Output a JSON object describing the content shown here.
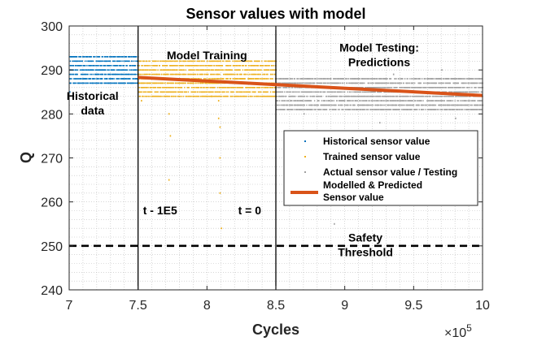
{
  "chart_data": {
    "type": "scatter",
    "title": "Sensor values with model",
    "xlabel": "Cycles",
    "ylabel": "Q",
    "xlim": [
      700000,
      1000000
    ],
    "ylim": [
      240,
      300
    ],
    "x_tick_labels": [
      "7",
      "7.5",
      "8",
      "8.5",
      "9",
      "9.5",
      "10"
    ],
    "x_tick_values": [
      700000,
      750000,
      800000,
      850000,
      900000,
      950000,
      1000000
    ],
    "x_exponent_label": "×10",
    "x_exponent_power": "5",
    "y_ticks": [
      240,
      250,
      260,
      270,
      280,
      290,
      300
    ],
    "grid": "minor dotted",
    "legend_position": "right",
    "series": [
      {
        "name": "Historical sensor value",
        "kind": "points",
        "color": "#0072BD",
        "x_range": [
          700000,
          750000
        ],
        "y_levels": [
          287,
          288,
          289,
          290,
          291,
          292,
          293
        ],
        "outliers": [
          [
            700000,
            285
          ]
        ]
      },
      {
        "name": "Trained sensor value",
        "kind": "points",
        "color": "#EDB120",
        "x_range": [
          750000,
          850000
        ],
        "y_levels": [
          284,
          285,
          286,
          287,
          288,
          289,
          290,
          291,
          292
        ],
        "outliers": [
          [
            772000,
            280
          ],
          [
            773000,
            275
          ],
          [
            772000,
            265
          ],
          [
            803000,
            284
          ],
          [
            808000,
            283
          ],
          [
            808000,
            279
          ],
          [
            809000,
            277
          ],
          [
            809000,
            270
          ],
          [
            809000,
            262
          ],
          [
            810000,
            254
          ],
          [
            752000,
            283
          ]
        ]
      },
      {
        "name": "Actual sensor value / Testing",
        "kind": "points",
        "color": "#A0A0A0",
        "x_range": [
          850000,
          1000000
        ],
        "y_levels": [
          281,
          282,
          283,
          284,
          285,
          286,
          287,
          288
        ],
        "outliers": [
          [
            892000,
            255
          ],
          [
            895000,
            270
          ],
          [
            915000,
            275
          ],
          [
            945000,
            265
          ],
          [
            960000,
            270
          ],
          [
            925000,
            278
          ],
          [
            980000,
            279
          ],
          [
            870000,
            280
          ],
          [
            970000,
            290
          ],
          [
            935000,
            289
          ]
        ]
      },
      {
        "name": "Modelled & Predicted Sensor value",
        "legend_lines": [
          "Modelled & Predicted",
          "Sensor value"
        ],
        "kind": "line",
        "color": "#D95319",
        "x": [
          750000,
          1000000
        ],
        "y": [
          288.3,
          284.2
        ]
      }
    ],
    "reference_lines": [
      {
        "orientation": "vertical",
        "x": 750000,
        "color": "#000000",
        "style": "solid"
      },
      {
        "orientation": "vertical",
        "x": 850000,
        "color": "#000000",
        "style": "solid"
      },
      {
        "orientation": "horizontal",
        "y": 250,
        "color": "#000000",
        "style": "dashed"
      }
    ],
    "annotations": [
      {
        "lines": [
          "Historical",
          "data"
        ],
        "x": 717000,
        "y": 283.2
      },
      {
        "lines": [
          "Model Training"
        ],
        "x": 800000,
        "y": 292.4
      },
      {
        "lines": [
          "Model Testing:",
          "Predictions"
        ],
        "x": 925000,
        "y": 294.2
      },
      {
        "lines": [
          "t - 1E5"
        ],
        "x": 766000,
        "y": 257.2
      },
      {
        "lines": [
          "t = 0"
        ],
        "x": 831000,
        "y": 257.2
      },
      {
        "lines": [
          "Safety",
          "Threshold"
        ],
        "x": 915000,
        "y": 251.0
      }
    ]
  }
}
